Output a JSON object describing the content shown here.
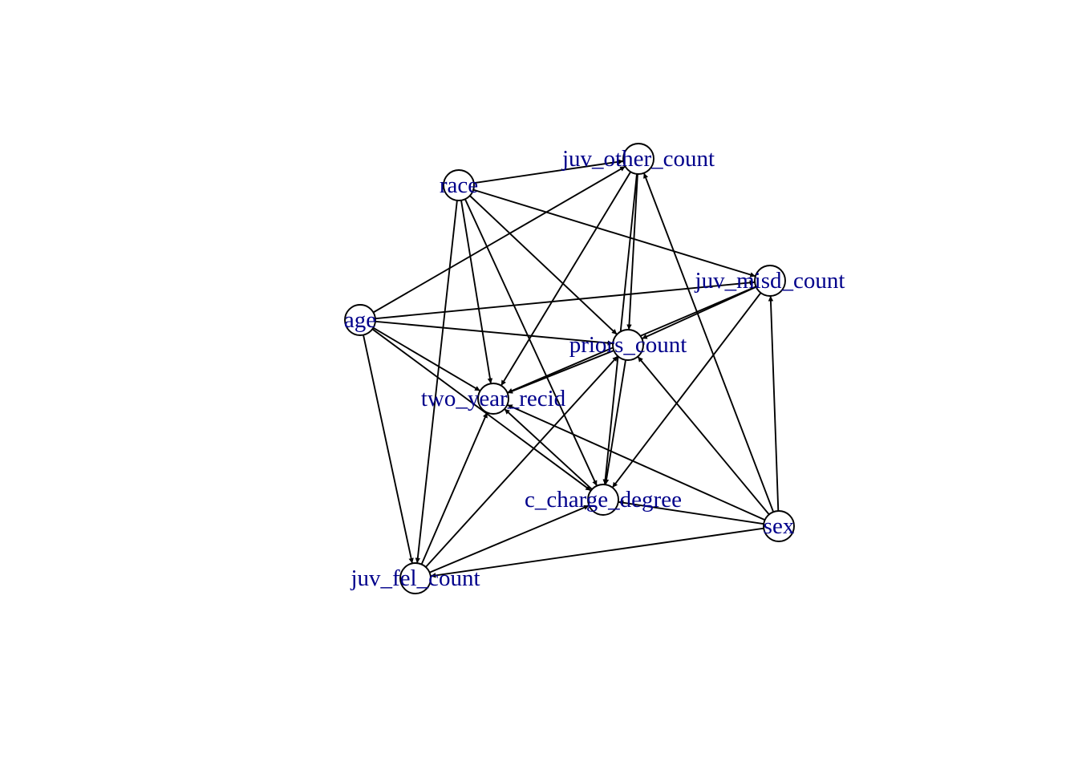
{
  "graph": {
    "edge_color": "#000000",
    "label_color": "#00008b",
    "node_fill": "#ffffff",
    "nodes": [
      {
        "id": "race",
        "label": "race"
      },
      {
        "id": "juv_other_count",
        "label": "juv_other_count"
      },
      {
        "id": "juv_misd_count",
        "label": "juv_misd_count"
      },
      {
        "id": "age",
        "label": "age"
      },
      {
        "id": "priors_count",
        "label": "priors_count"
      },
      {
        "id": "two_year_recid",
        "label": "two_year_recid"
      },
      {
        "id": "c_charge_degree",
        "label": "c_charge_degree"
      },
      {
        "id": "sex",
        "label": "sex"
      },
      {
        "id": "juv_fel_count",
        "label": "juv_fel_count"
      }
    ],
    "edges": [
      {
        "from": "race",
        "to": "juv_other_count"
      },
      {
        "from": "race",
        "to": "juv_misd_count"
      },
      {
        "from": "race",
        "to": "priors_count"
      },
      {
        "from": "race",
        "to": "two_year_recid"
      },
      {
        "from": "race",
        "to": "c_charge_degree"
      },
      {
        "from": "race",
        "to": "juv_fel_count"
      },
      {
        "from": "age",
        "to": "juv_other_count"
      },
      {
        "from": "age",
        "to": "juv_misd_count"
      },
      {
        "from": "age",
        "to": "priors_count"
      },
      {
        "from": "age",
        "to": "two_year_recid"
      },
      {
        "from": "age",
        "to": "c_charge_degree"
      },
      {
        "from": "age",
        "to": "juv_fel_count"
      },
      {
        "from": "sex",
        "to": "juv_other_count"
      },
      {
        "from": "sex",
        "to": "juv_misd_count"
      },
      {
        "from": "sex",
        "to": "priors_count"
      },
      {
        "from": "sex",
        "to": "two_year_recid"
      },
      {
        "from": "sex",
        "to": "c_charge_degree"
      },
      {
        "from": "sex",
        "to": "juv_fel_count"
      },
      {
        "from": "juv_other_count",
        "to": "priors_count"
      },
      {
        "from": "juv_other_count",
        "to": "two_year_recid"
      },
      {
        "from": "juv_other_count",
        "to": "c_charge_degree"
      },
      {
        "from": "juv_misd_count",
        "to": "priors_count"
      },
      {
        "from": "juv_misd_count",
        "to": "two_year_recid"
      },
      {
        "from": "juv_misd_count",
        "to": "c_charge_degree"
      },
      {
        "from": "juv_fel_count",
        "to": "priors_count"
      },
      {
        "from": "juv_fel_count",
        "to": "two_year_recid"
      },
      {
        "from": "juv_fel_count",
        "to": "c_charge_degree"
      },
      {
        "from": "priors_count",
        "to": "two_year_recid"
      },
      {
        "from": "priors_count",
        "to": "c_charge_degree"
      },
      {
        "from": "c_charge_degree",
        "to": "two_year_recid"
      }
    ]
  }
}
